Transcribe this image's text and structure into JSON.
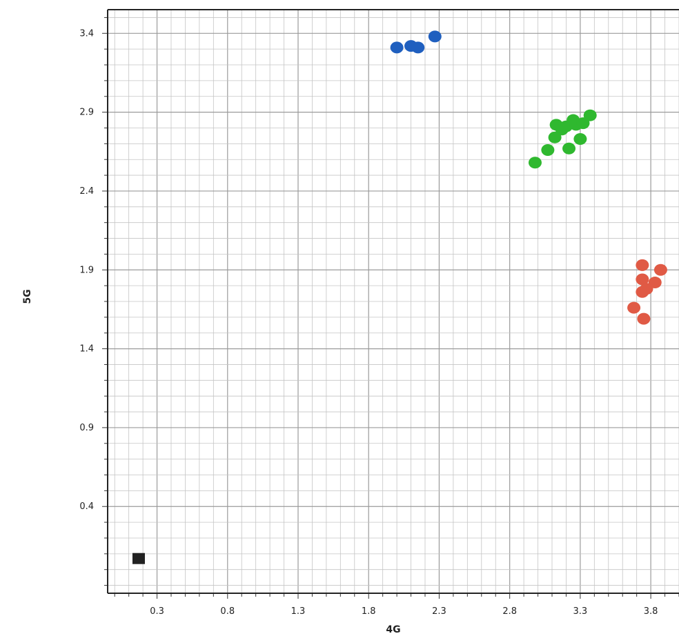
{
  "chart_data": {
    "type": "scatter",
    "title": "",
    "xlabel": "4G",
    "ylabel": "5G",
    "xlim": [
      -0.05,
      4.0
    ],
    "ylim": [
      -0.15,
      3.55
    ],
    "xticks": [
      0.3,
      0.8,
      1.3,
      1.8,
      2.3,
      2.8,
      3.3,
      3.8
    ],
    "yticks": [
      0.4,
      0.9,
      1.4,
      1.9,
      2.4,
      2.9,
      3.4
    ],
    "minor_step": 0.1,
    "grid": true,
    "series": [
      {
        "color": "#1f5fbf",
        "marker": "circle",
        "points": [
          [
            2.0,
            3.31
          ],
          [
            2.1,
            3.32
          ],
          [
            2.15,
            3.31
          ],
          [
            2.27,
            3.38
          ]
        ]
      },
      {
        "color": "#2fb82f",
        "marker": "circle",
        "points": [
          [
            2.98,
            2.58
          ],
          [
            3.07,
            2.66
          ],
          [
            3.12,
            2.74
          ],
          [
            3.13,
            2.82
          ],
          [
            3.17,
            2.79
          ],
          [
            3.2,
            2.81
          ],
          [
            3.22,
            2.67
          ],
          [
            3.25,
            2.85
          ],
          [
            3.27,
            2.82
          ],
          [
            3.3,
            2.73
          ],
          [
            3.32,
            2.83
          ],
          [
            3.37,
            2.88
          ]
        ]
      },
      {
        "color": "#e05a45",
        "marker": "circle",
        "points": [
          [
            3.74,
            1.93
          ],
          [
            3.87,
            1.9
          ],
          [
            3.74,
            1.84
          ],
          [
            3.83,
            1.82
          ],
          [
            3.77,
            1.78
          ],
          [
            3.74,
            1.76
          ],
          [
            3.68,
            1.66
          ],
          [
            3.75,
            1.59
          ]
        ]
      },
      {
        "color": "#222222",
        "marker": "square",
        "points": [
          [
            0.17,
            0.07
          ]
        ]
      }
    ]
  }
}
